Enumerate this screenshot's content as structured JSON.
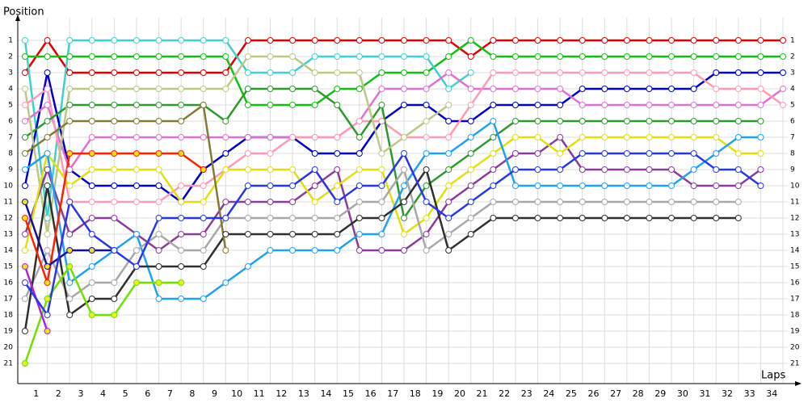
{
  "chart_data": {
    "type": "line",
    "y_label": "Position",
    "x_label": "Laps",
    "x": [
      0,
      1,
      2,
      3,
      4,
      5,
      6,
      7,
      8,
      9,
      10,
      11,
      12,
      13,
      14,
      15,
      16,
      17,
      18,
      19,
      20,
      21,
      22,
      23,
      24,
      25,
      26,
      27,
      28,
      29,
      30,
      31,
      32,
      33,
      34
    ],
    "xlim": [
      0,
      34
    ],
    "ylim": [
      22,
      0
    ],
    "grid": true,
    "xticks": [
      1,
      2,
      3,
      4,
      5,
      6,
      7,
      8,
      9,
      10,
      11,
      12,
      13,
      14,
      15,
      16,
      17,
      18,
      19,
      20,
      21,
      22,
      23,
      24,
      25,
      26,
      27,
      28,
      29,
      30,
      31,
      32,
      33,
      34
    ],
    "yticks": [
      1,
      2,
      3,
      4,
      5,
      6,
      7,
      8,
      9,
      10,
      11,
      12,
      13,
      14,
      15,
      16,
      17,
      18,
      19,
      20,
      21
    ],
    "series": [
      {
        "color": "#e00000",
        "values": [
          3,
          1,
          3,
          3,
          3,
          3,
          3,
          3,
          3,
          3,
          1,
          1,
          1,
          1,
          1,
          1,
          1,
          1,
          1,
          1,
          2,
          1,
          1,
          1,
          1,
          1,
          1,
          1,
          1,
          1,
          1,
          1,
          1,
          1,
          1
        ]
      },
      {
        "color": "#10c010",
        "values": [
          2,
          2,
          2,
          2,
          2,
          2,
          2,
          2,
          2,
          2,
          5,
          5,
          5,
          5,
          4,
          4,
          3,
          3,
          3,
          2,
          1,
          2,
          2,
          2,
          2,
          2,
          2,
          2,
          2,
          2,
          2,
          2,
          2,
          2,
          2
        ]
      },
      {
        "color": "#40d0d0",
        "values": [
          1,
          12,
          1,
          1,
          1,
          1,
          1,
          1,
          1,
          1,
          3,
          3,
          3,
          2,
          2,
          2,
          2,
          2,
          2,
          4,
          3,
          null,
          null,
          null,
          null,
          null,
          null,
          null,
          null,
          null,
          null,
          null,
          null,
          null,
          null
        ]
      },
      {
        "color": "#0000c8",
        "values": [
          10,
          3,
          9,
          10,
          10,
          10,
          10,
          11,
          9,
          8,
          7,
          7,
          7,
          8,
          8,
          8,
          6,
          5,
          5,
          6,
          6,
          5,
          5,
          5,
          5,
          4,
          4,
          4,
          4,
          4,
          4,
          3,
          3,
          3,
          3
        ]
      },
      {
        "color": "#e070d0",
        "values": [
          6,
          5,
          9,
          7,
          7,
          7,
          7,
          7,
          7,
          7,
          7,
          7,
          7,
          7,
          7,
          6,
          4,
          4,
          4,
          3,
          4,
          4,
          4,
          4,
          4,
          5,
          5,
          5,
          5,
          5,
          5,
          5,
          5,
          5,
          4
        ]
      },
      {
        "color": "#ff9ab4",
        "values": [
          5,
          4,
          11,
          11,
          11,
          11,
          11,
          10,
          10,
          9,
          8,
          8,
          7,
          7,
          7,
          6,
          6,
          7,
          7,
          7,
          5,
          3,
          3,
          3,
          3,
          3,
          3,
          3,
          3,
          3,
          3,
          4,
          4,
          4,
          5
        ]
      },
      {
        "color": "#2e9a2e",
        "values": [
          7,
          6,
          5,
          5,
          5,
          5,
          5,
          5,
          5,
          6,
          4,
          4,
          4,
          4,
          5,
          7,
          5,
          12,
          10,
          9,
          8,
          7,
          6,
          6,
          6,
          6,
          6,
          6,
          6,
          6,
          6,
          6,
          6,
          6,
          null
        ]
      },
      {
        "color": "#bcc884",
        "values": [
          4,
          13,
          4,
          4,
          4,
          4,
          4,
          4,
          4,
          4,
          2,
          2,
          2,
          3,
          3,
          3,
          8,
          7,
          6,
          5,
          null,
          null,
          null,
          null,
          null,
          null,
          null,
          null,
          null,
          null,
          null,
          null,
          null,
          null,
          null
        ]
      },
      {
        "color": "#8a3c9a",
        "values": [
          13,
          9,
          13,
          12,
          12,
          13,
          14,
          13,
          13,
          11,
          11,
          11,
          11,
          10,
          9,
          14,
          14,
          14,
          13,
          11,
          10,
          9,
          8,
          8,
          7,
          9,
          9,
          9,
          9,
          9,
          10,
          10,
          10,
          9,
          null
        ]
      },
      {
        "color": "#e0e010",
        "values": [
          14,
          8,
          10,
          9,
          9,
          9,
          9,
          11,
          11,
          9,
          9,
          9,
          9,
          11,
          10,
          9,
          9,
          13,
          12,
          10,
          9,
          8,
          7,
          7,
          8,
          7,
          7,
          7,
          7,
          7,
          7,
          7,
          8,
          8,
          null
        ]
      },
      {
        "color": "#20a0f0",
        "values": [
          9,
          8,
          16,
          15,
          14,
          13,
          17,
          17,
          17,
          16,
          15,
          14,
          14,
          14,
          14,
          13,
          13,
          10,
          8,
          8,
          7,
          6,
          10,
          10,
          10,
          10,
          10,
          10,
          10,
          10,
          9,
          8,
          7,
          7,
          null
        ]
      },
      {
        "color": "#a8a8a8",
        "values": [
          17,
          14,
          17,
          16,
          16,
          14,
          13,
          14,
          14,
          12,
          12,
          12,
          12,
          12,
          12,
          11,
          11,
          9,
          14,
          13,
          12,
          11,
          11,
          11,
          11,
          11,
          11,
          11,
          11,
          11,
          11,
          11,
          11,
          null,
          null
        ]
      },
      {
        "color": "#303030",
        "values": [
          19,
          10,
          18,
          17,
          17,
          15,
          15,
          15,
          15,
          13,
          13,
          13,
          13,
          13,
          13,
          12,
          12,
          11,
          9,
          14,
          13,
          12,
          12,
          12,
          12,
          12,
          12,
          12,
          12,
          12,
          12,
          12,
          12,
          null,
          null
        ]
      },
      {
        "color": "#847a34",
        "values": [
          8,
          7,
          6,
          6,
          6,
          6,
          6,
          6,
          5,
          14,
          null,
          null,
          null,
          null,
          null,
          null,
          null,
          null,
          null,
          null,
          null,
          null,
          null,
          null,
          null,
          null,
          null,
          null,
          null,
          null,
          null,
          null,
          null,
          null,
          null
        ]
      },
      {
        "color": "#ff2000",
        "marker": "#f0e020",
        "values": [
          12,
          16,
          8,
          8,
          8,
          8,
          8,
          8,
          9,
          null,
          null,
          null,
          null,
          null,
          null,
          null,
          null,
          null,
          null,
          null,
          null,
          null,
          null,
          null,
          null,
          null,
          null,
          null,
          null,
          null,
          null,
          null,
          null,
          null,
          null
        ]
      },
      {
        "color": "#70e000",
        "marker": "#e8f020",
        "values": [
          21,
          17,
          15,
          18,
          18,
          16,
          16,
          16,
          null,
          null,
          null,
          null,
          null,
          null,
          null,
          null,
          null,
          null,
          null,
          null,
          null,
          null,
          null,
          null,
          null,
          null,
          null,
          null,
          null,
          null,
          null,
          null,
          null,
          null,
          null
        ]
      },
      {
        "color": "#b020e0",
        "marker": "#f0e020",
        "values": [
          15,
          19,
          null,
          null,
          null,
          null,
          null,
          null,
          null,
          null,
          null,
          null,
          null,
          null,
          null,
          null,
          null,
          null,
          null,
          null,
          null,
          null,
          null,
          null,
          null,
          null,
          null,
          null,
          null,
          null,
          null,
          null,
          null,
          null,
          null
        ]
      },
      {
        "color": "#1010a0",
        "marker": "#f0e020",
        "values": [
          11,
          15,
          14,
          14,
          14,
          null,
          null,
          null,
          null,
          null,
          null,
          null,
          null,
          null,
          null,
          null,
          null,
          null,
          null,
          null,
          null,
          null,
          null,
          null,
          null,
          null,
          null,
          null,
          null,
          null,
          null,
          null,
          null,
          null,
          null
        ]
      },
      {
        "color": "#2838e8",
        "values": [
          16,
          18,
          11,
          13,
          14,
          15,
          12,
          12,
          12,
          12,
          10,
          10,
          10,
          9,
          11,
          10,
          10,
          8,
          11,
          12,
          11,
          10,
          9,
          9,
          9,
          8,
          8,
          8,
          8,
          8,
          8,
          9,
          9,
          10,
          null
        ]
      }
    ]
  }
}
